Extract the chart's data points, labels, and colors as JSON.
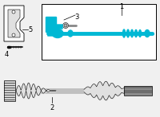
{
  "bg_color": "#f0f0f0",
  "box_color": "#ffffff",
  "line_color": "#000000",
  "part_color_blue": "#00b8d4",
  "part_color_gray": "#c0c0c0",
  "part_color_light": "#e0e0e0",
  "label_1": "1",
  "label_2": "2",
  "label_3": "3",
  "label_4": "4",
  "label_5": "5",
  "font_size": 6
}
